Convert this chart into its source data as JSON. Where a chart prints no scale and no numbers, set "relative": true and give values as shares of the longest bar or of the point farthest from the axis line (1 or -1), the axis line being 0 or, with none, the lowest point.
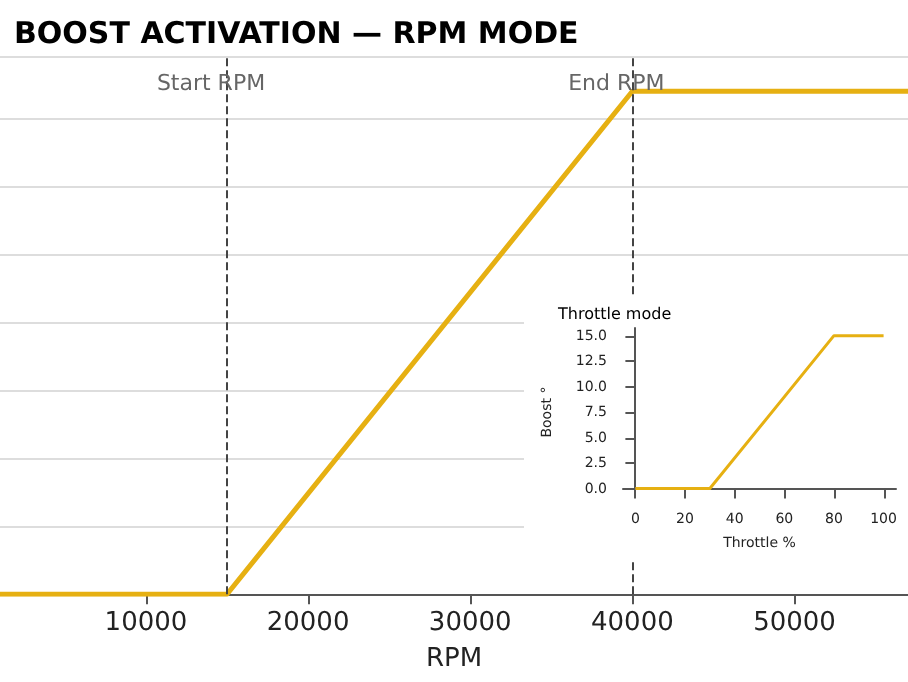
{
  "chart_data": [
    {
      "type": "line",
      "title": "BOOST ACTIVATION — RPM MODE",
      "xlabel": "RPM",
      "relative": true,
      "x": [
        1000,
        15000,
        40000,
        57000
      ],
      "series": [
        {
          "color": "#e6b012",
          "values": [
            0,
            0,
            1,
            1
          ]
        }
      ],
      "xlim": [
        1000,
        57000
      ],
      "xticks": [
        10000,
        20000,
        30000,
        40000,
        50000
      ],
      "tick_labels": "x",
      "grid": "y",
      "ref_lines": [
        {
          "axis": "x",
          "value": 15000,
          "label": "Start RPM",
          "color": "#444444",
          "line_style": "dashed"
        },
        {
          "axis": "x",
          "value": 40000,
          "label": "End RPM",
          "color": "#444444",
          "line_style": "dashed"
        }
      ]
    },
    {
      "type": "line",
      "title": "Throttle mode",
      "xlabel": "Throttle %",
      "ylabel": "Boost °",
      "x": [
        0,
        30,
        80,
        100
      ],
      "series": [
        {
          "color": "#e6b012",
          "values": [
            0,
            0,
            15,
            15
          ]
        }
      ],
      "xlim": [
        -5,
        105
      ],
      "xticks": [
        0,
        20,
        40,
        60,
        80,
        100
      ],
      "ylim": [
        -0.75,
        15.75
      ],
      "yticks": [
        {
          "value": 0,
          "label": "0.0"
        },
        {
          "value": 2.5,
          "label": "2.5"
        },
        {
          "value": 5,
          "label": "5.0"
        },
        {
          "value": 7.5,
          "label": "7.5"
        },
        {
          "value": 10,
          "label": "10.0"
        },
        {
          "value": 12.5,
          "label": "12.5"
        },
        {
          "value": 15,
          "label": "15.0"
        }
      ],
      "grid": false
    }
  ]
}
